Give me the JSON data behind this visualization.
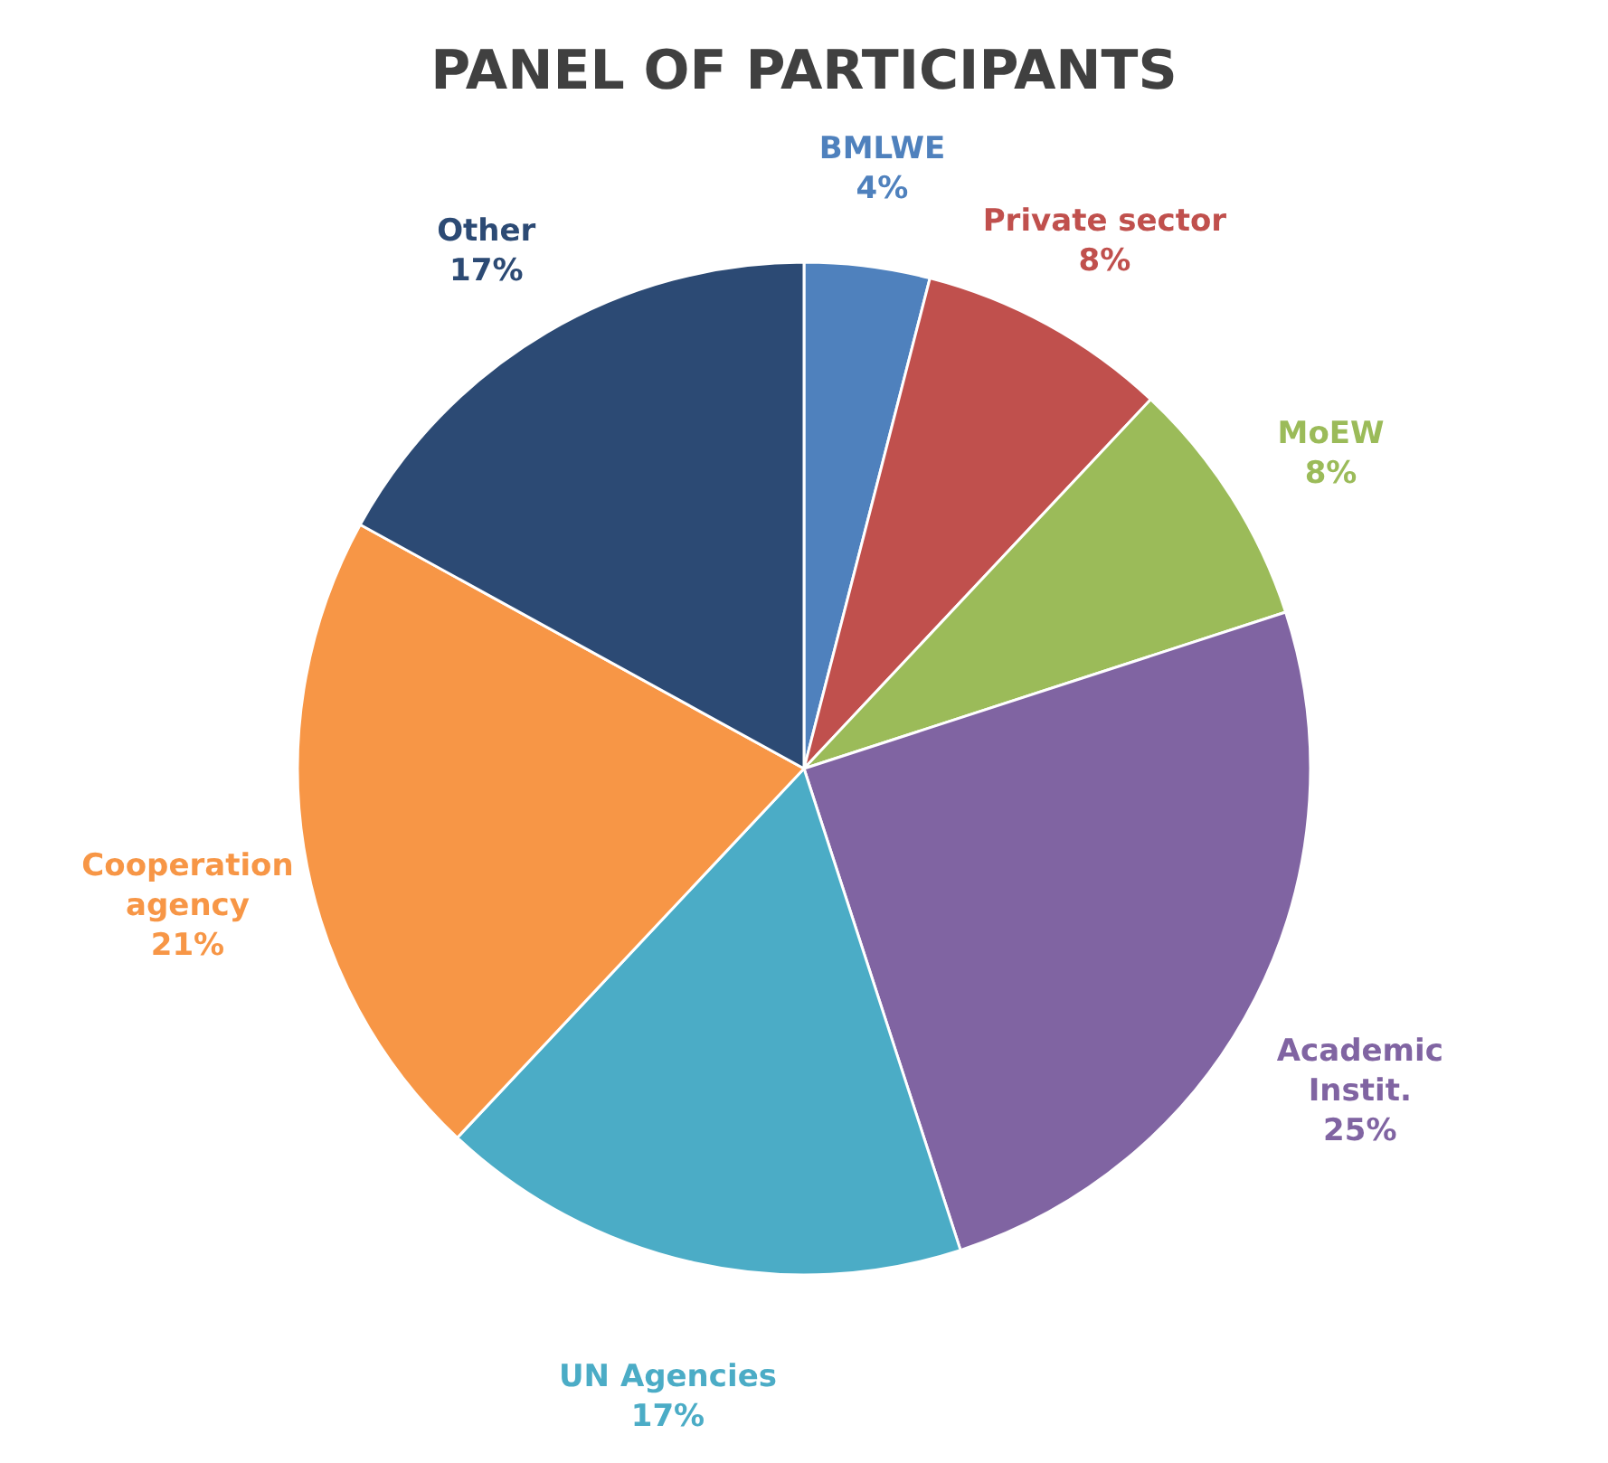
{
  "chart_data": {
    "type": "pie",
    "title": "PANEL OF PARTICIPANTS",
    "categories": [
      "BMLWE",
      "Private sector",
      "MoEW",
      "Academic\nInstit.",
      "UN Agencies",
      "Cooperation\nagency",
      "Other"
    ],
    "values": [
      4,
      8,
      8,
      25,
      17,
      21,
      17
    ],
    "value_labels": [
      "4%",
      "8%",
      "8%",
      "25%",
      "17%",
      "21%",
      "17%"
    ],
    "colors": [
      "#4f81bd",
      "#c0504d",
      "#9bbb59",
      "#8064a2",
      "#4bacc6",
      "#f79646",
      "#2c4a74"
    ],
    "legend": false
  }
}
